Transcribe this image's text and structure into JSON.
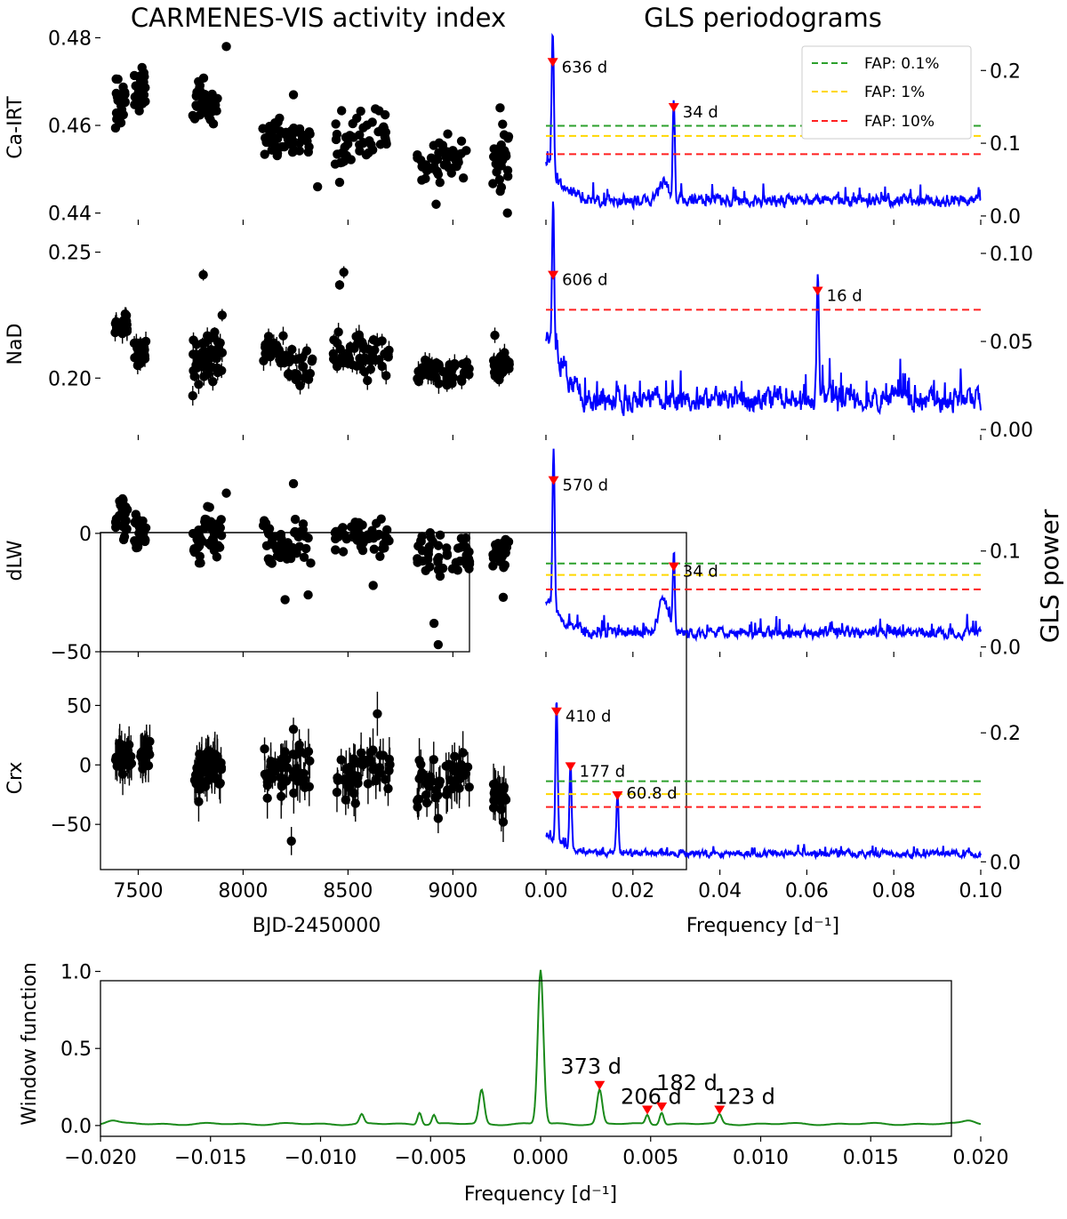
{
  "figure": {
    "left_title": "CARMENES-VIS activity index",
    "right_title": "GLS periodograms",
    "right_ylabel": "GLS power"
  },
  "colors": {
    "points": "#000000",
    "periodogram": "#0000ff",
    "window": "#1a8a1a",
    "peak_marker": "#ff0000",
    "fap_01": "#2ca02c",
    "fap_1": "#ffd700",
    "fap_10": "#ff2020"
  },
  "legend": {
    "placement": "top-right of first periodogram",
    "entries": [
      {
        "label": "FAP: 0.1%",
        "color": "#2ca02c"
      },
      {
        "label": "FAP: 1%",
        "color": "#ffd700"
      },
      {
        "label": "FAP: 10%",
        "color": "#ff2020"
      }
    ]
  },
  "chart_data": [
    {
      "type": "scatter",
      "name": "Ca-IRT time series",
      "ylabel": "Ca-IRT",
      "xlim": [
        7320,
        9380
      ],
      "ylim": [
        0.4385,
        0.4805
      ],
      "yticks": [
        0.44,
        0.46,
        0.48
      ],
      "ytick_labels": [
        "0.44",
        "0.46",
        "0.48"
      ],
      "clusters": [
        {
          "x": [
            7390,
            7440
          ],
          "y": [
            0.459,
            0.472
          ]
        },
        {
          "x": [
            7480,
            7540
          ],
          "y": [
            0.462,
            0.474
          ]
        },
        {
          "x": [
            7760,
            7820
          ],
          "y": [
            0.459,
            0.473
          ]
        },
        {
          "x": [
            7820,
            7880
          ],
          "y": [
            0.46,
            0.47
          ]
        },
        {
          "x": [
            8090,
            8200
          ],
          "y": [
            0.452,
            0.462
          ]
        },
        {
          "x": [
            8200,
            8320
          ],
          "y": [
            0.452,
            0.461
          ]
        },
        {
          "x": [
            8430,
            8560
          ],
          "y": [
            0.448,
            0.465
          ]
        },
        {
          "x": [
            8560,
            8690
          ],
          "y": [
            0.45,
            0.466
          ]
        },
        {
          "x": [
            8830,
            8940
          ],
          "y": [
            0.444,
            0.457
          ]
        },
        {
          "x": [
            8950,
            9080
          ],
          "y": [
            0.448,
            0.459
          ]
        },
        {
          "x": [
            9190,
            9270
          ],
          "y": [
            0.441,
            0.463
          ]
        }
      ],
      "extra_points": [
        {
          "x": 7920,
          "y": 0.478
        },
        {
          "x": 8355,
          "y": 0.446
        },
        {
          "x": 8460,
          "y": 0.447
        },
        {
          "x": 8920,
          "y": 0.442
        },
        {
          "x": 9050,
          "y": 0.448
        },
        {
          "x": 8240,
          "y": 0.467
        },
        {
          "x": 9260,
          "y": 0.44
        },
        {
          "x": 9225,
          "y": 0.464
        }
      ]
    },
    {
      "type": "scatter",
      "name": "NaD time series",
      "ylabel": "NaD",
      "xlim": [
        7320,
        9380
      ],
      "ylim": [
        0.1775,
        0.2495
      ],
      "yticks": [
        0.2,
        0.25
      ],
      "ytick_labels": [
        "0.20",
        "0.25"
      ],
      "clusters": [
        {
          "x": [
            7390,
            7450
          ],
          "y": [
            0.216,
            0.226
          ]
        },
        {
          "x": [
            7480,
            7540
          ],
          "y": [
            0.203,
            0.216
          ]
        },
        {
          "x": [
            7760,
            7830
          ],
          "y": [
            0.196,
            0.219
          ]
        },
        {
          "x": [
            7830,
            7900
          ],
          "y": [
            0.198,
            0.221
          ]
        },
        {
          "x": [
            8090,
            8200
          ],
          "y": [
            0.204,
            0.218
          ]
        },
        {
          "x": [
            8200,
            8330
          ],
          "y": [
            0.194,
            0.214
          ]
        },
        {
          "x": [
            8430,
            8560
          ],
          "y": [
            0.199,
            0.22
          ]
        },
        {
          "x": [
            8560,
            8700
          ],
          "y": [
            0.198,
            0.219
          ]
        },
        {
          "x": [
            8830,
            8940
          ],
          "y": [
            0.197,
            0.21
          ]
        },
        {
          "x": [
            8950,
            9080
          ],
          "y": [
            0.195,
            0.209
          ]
        },
        {
          "x": [
            9190,
            9270
          ],
          "y": [
            0.196,
            0.212
          ]
        }
      ],
      "extra_points": [
        {
          "x": 7810,
          "y": 0.241
        },
        {
          "x": 8460,
          "y": 0.237
        },
        {
          "x": 8480,
          "y": 0.242
        },
        {
          "x": 7900,
          "y": 0.225
        },
        {
          "x": 9200,
          "y": 0.217
        },
        {
          "x": 7760,
          "y": 0.193
        }
      ]
    },
    {
      "type": "scatter",
      "name": "dLW time series",
      "ylabel": "dLW",
      "xlim": [
        7320,
        9380
      ],
      "ylim": [
        -50,
        27
      ],
      "yticks": [
        -50,
        0
      ],
      "ytick_labels": [
        "−50",
        "0"
      ],
      "clusters": [
        {
          "x": [
            7390,
            7450
          ],
          "y": [
            -5,
            18
          ]
        },
        {
          "x": [
            7480,
            7540
          ],
          "y": [
            -9,
            10
          ]
        },
        {
          "x": [
            7760,
            7830
          ],
          "y": [
            -14,
            8
          ]
        },
        {
          "x": [
            7830,
            7900
          ],
          "y": [
            -13,
            14
          ]
        },
        {
          "x": [
            8090,
            8200
          ],
          "y": [
            -18,
            10
          ]
        },
        {
          "x": [
            8200,
            8330
          ],
          "y": [
            -17,
            8
          ]
        },
        {
          "x": [
            8430,
            8560
          ],
          "y": [
            -10,
            10
          ]
        },
        {
          "x": [
            8560,
            8700
          ],
          "y": [
            -13,
            8
          ]
        },
        {
          "x": [
            8830,
            8940
          ],
          "y": [
            -22,
            3
          ]
        },
        {
          "x": [
            8950,
            9080
          ],
          "y": [
            -20,
            0
          ]
        },
        {
          "x": [
            9190,
            9270
          ],
          "y": [
            -17,
            3
          ]
        }
      ],
      "extra_points": [
        {
          "x": 8240,
          "y": 21
        },
        {
          "x": 8200,
          "y": -28
        },
        {
          "x": 8310,
          "y": -26
        },
        {
          "x": 8910,
          "y": -38
        },
        {
          "x": 8930,
          "y": -47
        },
        {
          "x": 7920,
          "y": 17
        },
        {
          "x": 9240,
          "y": -27
        },
        {
          "x": 8620,
          "y": -22
        }
      ]
    },
    {
      "type": "scatter",
      "name": "Crx time series",
      "ylabel": "Crx",
      "xlim": [
        7320,
        9380
      ],
      "ylim": [
        -88,
        66
      ],
      "yticks": [
        -50,
        0,
        50
      ],
      "ytick_labels": [
        "−50",
        "0",
        "50"
      ],
      "xticks": [
        7500,
        8000,
        8500,
        9000
      ],
      "xlabel": "BJD-2450000",
      "clusters": [
        {
          "x": [
            7390,
            7470
          ],
          "y": [
            -12,
            22
          ]
        },
        {
          "x": [
            7510,
            7560
          ],
          "y": [
            -5,
            20
          ]
        },
        {
          "x": [
            7760,
            7830
          ],
          "y": [
            -32,
            15
          ]
        },
        {
          "x": [
            7830,
            7900
          ],
          "y": [
            -20,
            20
          ]
        },
        {
          "x": [
            8090,
            8200
          ],
          "y": [
            -35,
            20
          ]
        },
        {
          "x": [
            8200,
            8330
          ],
          "y": [
            -40,
            25
          ]
        },
        {
          "x": [
            8430,
            8560
          ],
          "y": [
            -40,
            10
          ]
        },
        {
          "x": [
            8560,
            8700
          ],
          "y": [
            -25,
            20
          ]
        },
        {
          "x": [
            8830,
            8940
          ],
          "y": [
            -40,
            10
          ]
        },
        {
          "x": [
            8950,
            9080
          ],
          "y": [
            -28,
            15
          ]
        },
        {
          "x": [
            9190,
            9270
          ],
          "y": [
            -40,
            -10
          ]
        }
      ],
      "extra_points": [
        {
          "x": 8230,
          "y": -64
        },
        {
          "x": 8640,
          "y": 43
        },
        {
          "x": 8240,
          "y": 30
        },
        {
          "x": 9240,
          "y": -48
        },
        {
          "x": 8930,
          "y": -45
        }
      ]
    },
    {
      "type": "line",
      "name": "Ca-IRT periodogram",
      "xlim": [
        0.0,
        0.1
      ],
      "ylim": [
        -0.005,
        0.248
      ],
      "yticks": [
        0.0,
        0.1,
        0.2
      ],
      "ytick_labels": [
        "0.0",
        "0.1",
        "0.2"
      ],
      "fap": [
        0.124,
        0.11,
        0.085
      ],
      "peaks": [
        {
          "f": 0.00157,
          "p": 0.2,
          "label": "636 d"
        },
        {
          "f": 0.0294,
          "p": 0.138,
          "label": "34 d"
        }
      ],
      "noise": 0.05
    },
    {
      "type": "line",
      "name": "NaD periodogram",
      "xlim": [
        0.0,
        0.1
      ],
      "ylim": [
        -0.003,
        0.1
      ],
      "yticks": [
        0.0,
        0.05,
        0.1
      ],
      "ytick_labels": [
        "0.00",
        "0.05",
        "0.10"
      ],
      "fap": [
        0.068
      ],
      "peaks": [
        {
          "f": 0.00165,
          "p": 0.083,
          "label": "606 d"
        },
        {
          "f": 0.0625,
          "p": 0.074,
          "label": "16 d"
        }
      ],
      "noise": 0.04
    },
    {
      "type": "line",
      "name": "dLW periodogram",
      "xlim": [
        0.0,
        0.1
      ],
      "ylim": [
        -0.005,
        0.185
      ],
      "yticks": [
        0.0,
        0.1
      ],
      "ytick_labels": [
        "0.0",
        "0.1"
      ],
      "fap": [
        0.087,
        0.075,
        0.06
      ],
      "peaks": [
        {
          "f": 0.00175,
          "p": 0.165,
          "label": "570 d"
        },
        {
          "f": 0.0294,
          "p": 0.075,
          "label": "34 d"
        }
      ],
      "noise": 0.035
    },
    {
      "type": "line",
      "name": "Crx periodogram",
      "xlim": [
        0.0,
        0.1
      ],
      "ylim": [
        -0.012,
        0.272
      ],
      "yticks": [
        0.0,
        0.2
      ],
      "ytick_labels": [
        "0.0",
        "0.2"
      ],
      "xticks": [
        0.0,
        0.02,
        0.04,
        0.06,
        0.08,
        0.1
      ],
      "xtick_labels": [
        "0.00",
        "0.02",
        "0.04",
        "0.06",
        "0.08",
        "0.10"
      ],
      "xlabel": "Frequency [d⁻¹]",
      "fap": [
        0.125,
        0.105,
        0.085
      ],
      "peaks": [
        {
          "f": 0.00244,
          "p": 0.22,
          "label": "410 d"
        },
        {
          "f": 0.00565,
          "p": 0.135,
          "label": "177 d"
        },
        {
          "f": 0.01645,
          "p": 0.09,
          "label": "60.8 d"
        }
      ],
      "noise": 0.03
    },
    {
      "type": "line",
      "name": "Window function",
      "ylabel": "Window function",
      "xlim": [
        -0.02,
        0.02
      ],
      "ylim": [
        -0.07,
        1.13
      ],
      "yticks": [
        0.0,
        0.5,
        1.0
      ],
      "ytick_labels": [
        "0.0",
        "0.5",
        "1.0"
      ],
      "xticks": [
        -0.02,
        -0.015,
        -0.01,
        -0.005,
        0.0,
        0.005,
        0.01,
        0.015,
        0.02
      ],
      "xtick_labels": [
        "−0.020",
        "−0.015",
        "−0.010",
        "−0.005",
        "0.000",
        "0.005",
        "0.010",
        "0.015",
        "0.020"
      ],
      "xlabel": "Frequency [d⁻¹]",
      "components": [
        {
          "f": 0.0,
          "a": 1.0,
          "w": 0.00018
        },
        {
          "f": 0.00268,
          "a": 0.22,
          "w": 0.00017
        },
        {
          "f": -0.00268,
          "a": 0.22,
          "w": 0.00017
        },
        {
          "f": 0.00485,
          "a": 0.06,
          "w": 0.00012
        },
        {
          "f": -0.00485,
          "a": 0.06,
          "w": 0.00012
        },
        {
          "f": 0.0055,
          "a": 0.08,
          "w": 0.00013
        },
        {
          "f": -0.0055,
          "a": 0.08,
          "w": 0.00013
        },
        {
          "f": 0.00813,
          "a": 0.06,
          "w": 0.00014
        },
        {
          "f": -0.00813,
          "a": 0.06,
          "w": 0.00014
        },
        {
          "f": 0.0195,
          "a": 0.025,
          "w": 0.0004
        },
        {
          "f": -0.0195,
          "a": 0.025,
          "w": 0.0004
        }
      ],
      "peaks": [
        {
          "f": 0.00268,
          "p": 0.22,
          "label": "373 d"
        },
        {
          "f": 0.00485,
          "p": 0.06,
          "label": "206 d"
        },
        {
          "f": 0.0055,
          "p": 0.08,
          "label": "182 d"
        },
        {
          "f": 0.00813,
          "p": 0.06,
          "label": "123 d"
        }
      ]
    }
  ]
}
